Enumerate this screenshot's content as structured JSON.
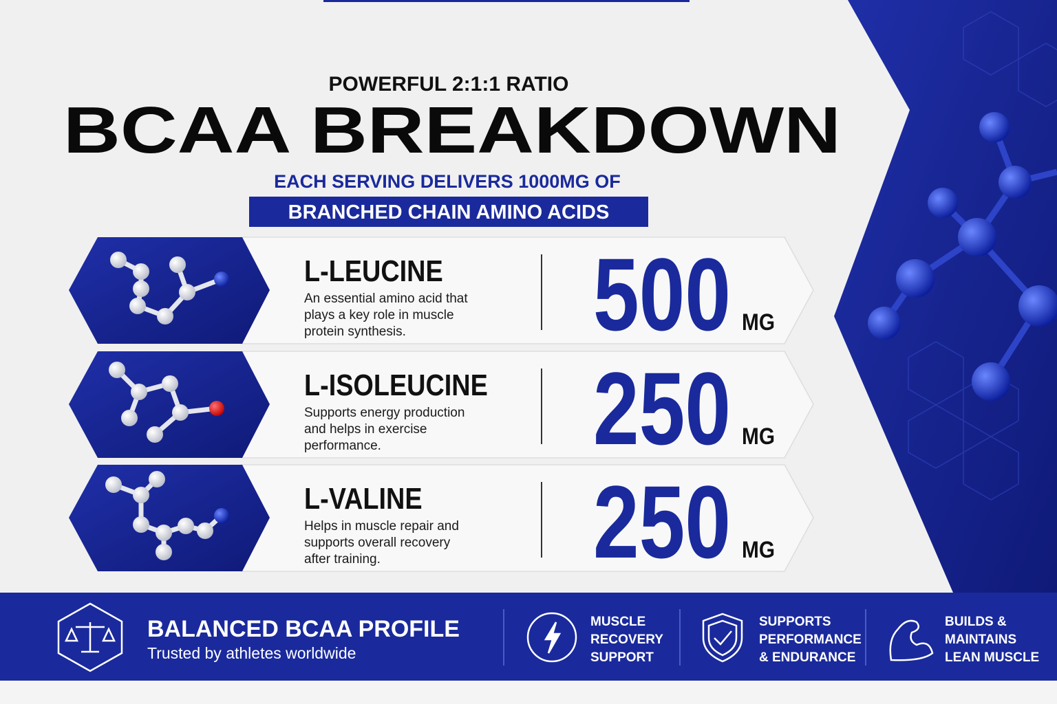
{
  "header": {
    "kicker": "POWERFUL 2:1:1 RATIO",
    "title": "BCAA BREAKDOWN",
    "subtitle": "EACH SERVING DELIVERS 1000MG OF",
    "highlight": "BRANCHED CHAIN AMINO ACIDS"
  },
  "items": [
    {
      "name": "L-LEUCINE",
      "description": [
        "An essential amino acid that",
        "plays a key role in muscle",
        "protein synthesis."
      ],
      "amount": "500",
      "unit": "MG"
    },
    {
      "name": "L-ISOLEUCINE",
      "description": [
        "Supports energy production",
        "and helps in exercise",
        "performance."
      ],
      "amount": "250",
      "unit": "MG"
    },
    {
      "name": "L-VALINE",
      "description": [
        "Helps in muscle repair and",
        "supports overall recovery",
        "after training."
      ],
      "amount": "250",
      "unit": "MG"
    }
  ],
  "footer": {
    "title": "BALANCED BCAA PROFILE",
    "subtitle": "Trusted by athletes worldwide",
    "badges": [
      {
        "lines": [
          "MUSCLE",
          "RECOVERY",
          "SUPPORT"
        ]
      },
      {
        "lines": [
          "SUPPORTS",
          "PERFORMANCE",
          "& ENDURANCE"
        ]
      },
      {
        "lines": [
          "BUILDS &",
          "MAINTAINS",
          "LEAN MUSCLE"
        ]
      }
    ]
  }
}
